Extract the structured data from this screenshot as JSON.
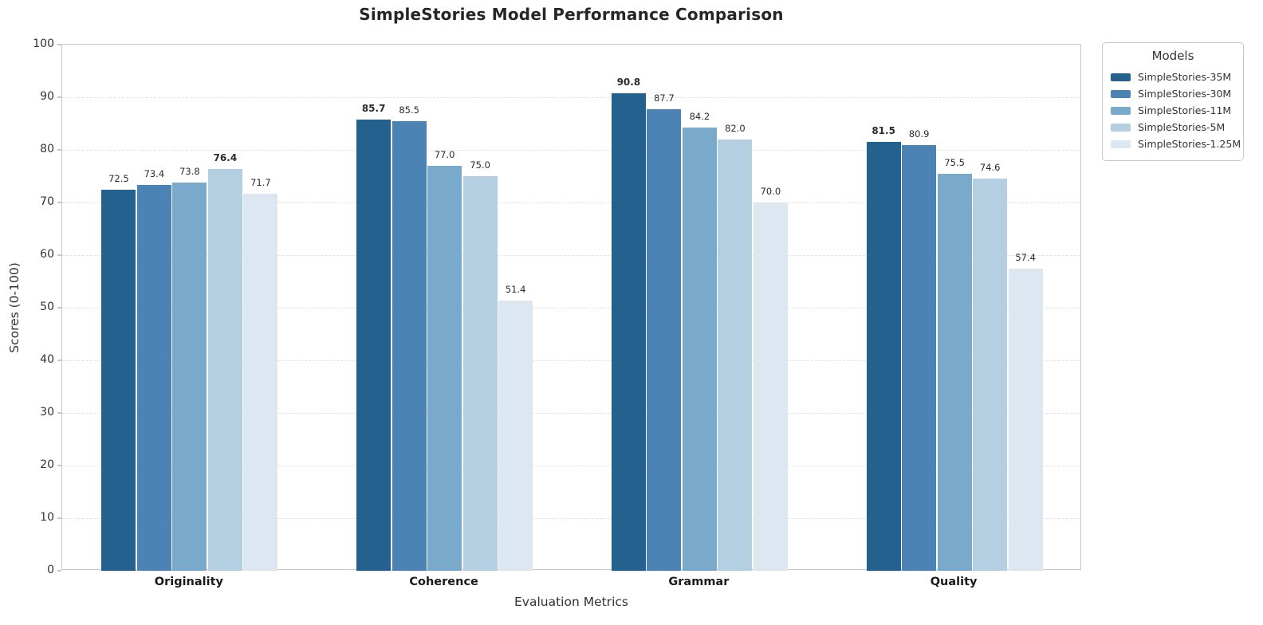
{
  "chart_data": {
    "type": "bar",
    "title": "SimpleStories Model Performance Comparison",
    "xlabel": "Evaluation Metrics",
    "ylabel": "Scores (0-100)",
    "ylim": [
      0,
      100
    ],
    "yticks": [
      0,
      10,
      20,
      30,
      40,
      50,
      60,
      70,
      80,
      90,
      100
    ],
    "grid": "horizontal-dashed",
    "categories": [
      "Originality",
      "Coherence",
      "Grammar",
      "Quality"
    ],
    "series": [
      {
        "name": "SimpleStories-35M",
        "color": "#25618F",
        "values": [
          72.5,
          85.7,
          90.8,
          81.5
        ]
      },
      {
        "name": "SimpleStories-30M",
        "color": "#4A83B4",
        "values": [
          73.4,
          85.5,
          87.7,
          80.9
        ]
      },
      {
        "name": "SimpleStories-11M",
        "color": "#7AAACB",
        "values": [
          73.8,
          77.0,
          84.2,
          75.5
        ]
      },
      {
        "name": "SimpleStories-5M",
        "color": "#B4CFE1",
        "values": [
          76.4,
          75.0,
          82.0,
          74.6
        ]
      },
      {
        "name": "SimpleStories-1.25M",
        "color": "#DCE7F2",
        "values": [
          71.7,
          51.4,
          70.0,
          57.4
        ]
      }
    ],
    "value_label_decimals": 1,
    "bold_max_label_per_group": true,
    "legend": {
      "title": "Models",
      "position": "outside-top-right"
    }
  }
}
